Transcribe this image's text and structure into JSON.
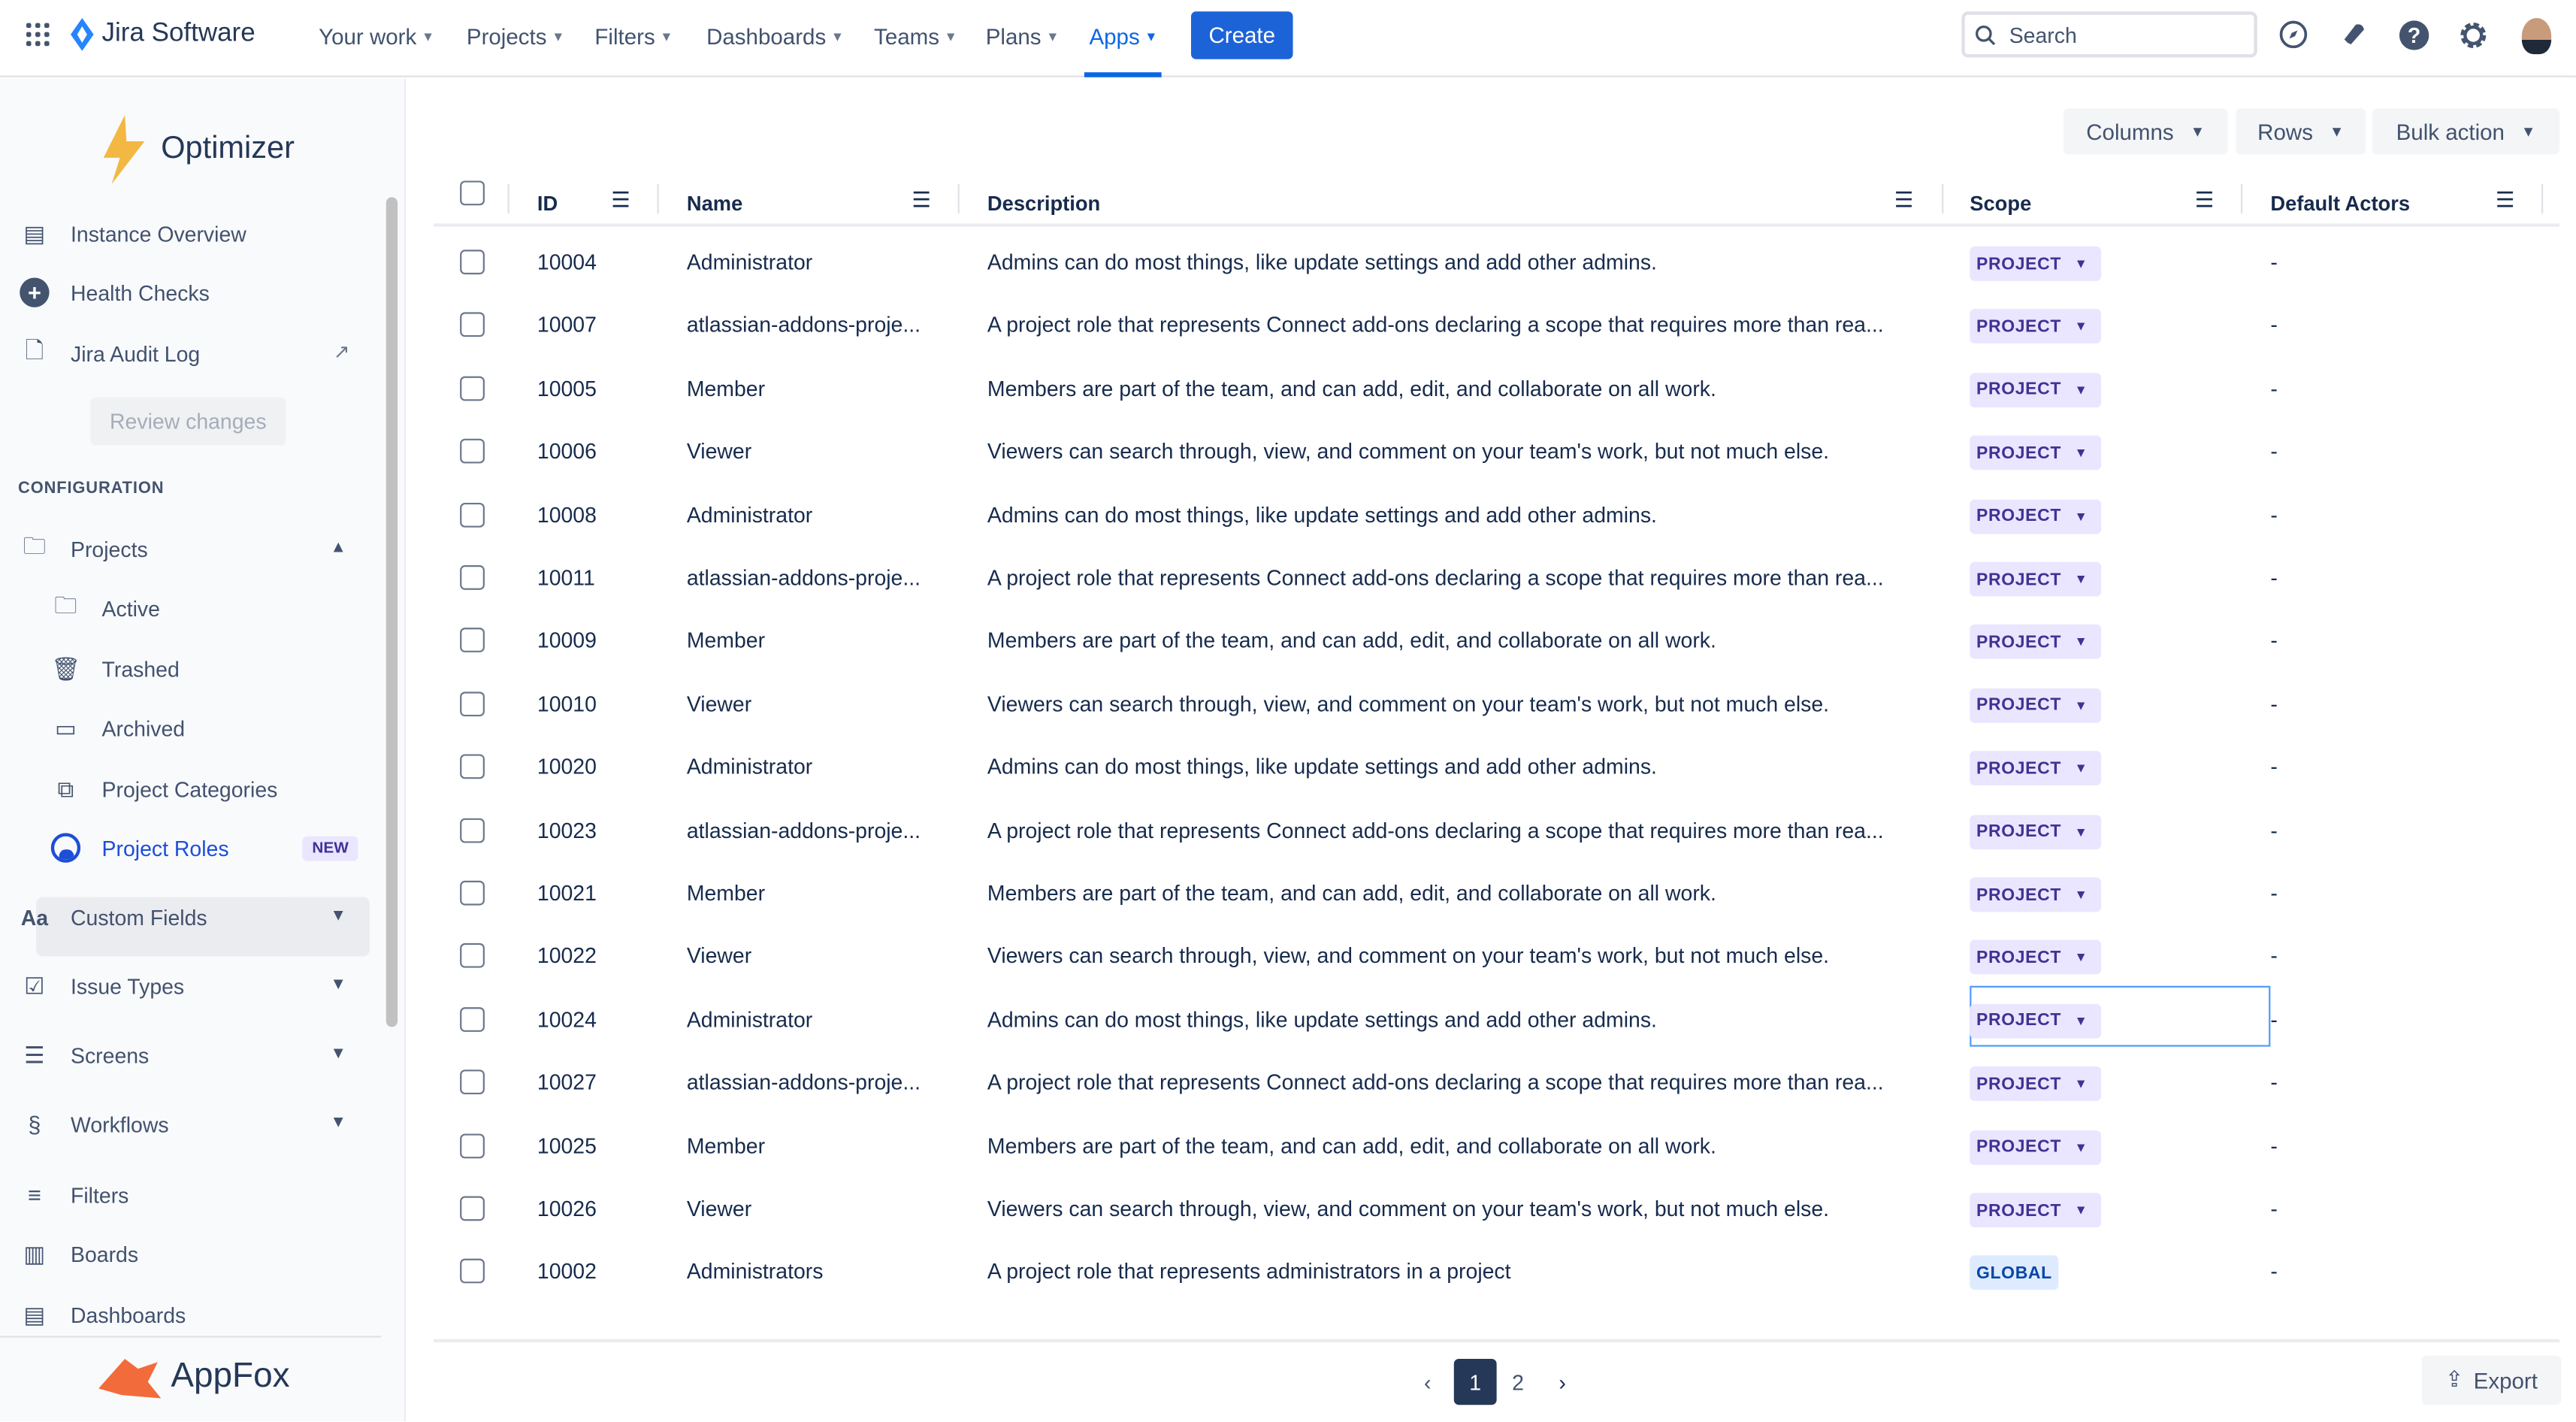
{
  "topnav": {
    "product": "Jira Software",
    "items": [
      "Your work",
      "Projects",
      "Filters",
      "Dashboards",
      "Teams",
      "Plans",
      "Apps"
    ],
    "active": "Apps",
    "create": "Create",
    "search_placeholder": "Search"
  },
  "sidebar": {
    "app_name": "Optimizer",
    "top_items": [
      "Instance Overview",
      "Health Checks",
      "Jira Audit Log"
    ],
    "review_changes": "Review changes",
    "section": "CONFIGURATION",
    "projects": "Projects",
    "project_children": [
      "Active",
      "Trashed",
      "Archived",
      "Project Categories",
      "Project Roles"
    ],
    "new_badge": "NEW",
    "groups": [
      "Custom Fields",
      "Issue Types",
      "Screens",
      "Workflows"
    ],
    "bottom_items": [
      "Filters",
      "Boards",
      "Dashboards"
    ],
    "vendor": "AppFox"
  },
  "toolbar": {
    "columns": "Columns",
    "rows": "Rows",
    "bulk": "Bulk action"
  },
  "table": {
    "headers": [
      "ID",
      "Name",
      "Description",
      "Scope",
      "Default Actors"
    ],
    "rows": [
      [
        "10004",
        "Administrator",
        "Admins can do most things, like update settings and add other admins.",
        "PROJECT",
        "-"
      ],
      [
        "10007",
        "atlassian-addons-proje...",
        "A project role that represents Connect add-ons declaring a scope that requires more than rea...",
        "PROJECT",
        "-"
      ],
      [
        "10005",
        "Member",
        "Members are part of the team, and can add, edit, and collaborate on all work.",
        "PROJECT",
        "-"
      ],
      [
        "10006",
        "Viewer",
        "Viewers can search through, view, and comment on your team's work, but not much else.",
        "PROJECT",
        "-"
      ],
      [
        "10008",
        "Administrator",
        "Admins can do most things, like update settings and add other admins.",
        "PROJECT",
        "-"
      ],
      [
        "10011",
        "atlassian-addons-proje...",
        "A project role that represents Connect add-ons declaring a scope that requires more than rea...",
        "PROJECT",
        "-"
      ],
      [
        "10009",
        "Member",
        "Members are part of the team, and can add, edit, and collaborate on all work.",
        "PROJECT",
        "-"
      ],
      [
        "10010",
        "Viewer",
        "Viewers can search through, view, and comment on your team's work, but not much else.",
        "PROJECT",
        "-"
      ],
      [
        "10020",
        "Administrator",
        "Admins can do most things, like update settings and add other admins.",
        "PROJECT",
        "-"
      ],
      [
        "10023",
        "atlassian-addons-proje...",
        "A project role that represents Connect add-ons declaring a scope that requires more than rea...",
        "PROJECT",
        "-"
      ],
      [
        "10021",
        "Member",
        "Members are part of the team, and can add, edit, and collaborate on all work.",
        "PROJECT",
        "-"
      ],
      [
        "10022",
        "Viewer",
        "Viewers can search through, view, and comment on your team's work, but not much else.",
        "PROJECT",
        "-"
      ],
      [
        "10024",
        "Administrator",
        "Admins can do most things, like update settings and add other admins.",
        "PROJECT",
        "-"
      ],
      [
        "10027",
        "atlassian-addons-proje...",
        "A project role that represents Connect add-ons declaring a scope that requires more than rea...",
        "PROJECT",
        "-"
      ],
      [
        "10025",
        "Member",
        "Members are part of the team, and can add, edit, and collaborate on all work.",
        "PROJECT",
        "-"
      ],
      [
        "10026",
        "Viewer",
        "Viewers can search through, view, and comment on your team's work, but not much else.",
        "PROJECT",
        "-"
      ],
      [
        "10002",
        "Administrators",
        "A project role that represents administrators in a project",
        "GLOBAL",
        "-"
      ]
    ]
  },
  "pagination": {
    "pages": [
      "1",
      "2"
    ],
    "current": "1"
  },
  "export": "Export",
  "colors": {
    "accent": "#0c66e4",
    "create": "#1d63d8",
    "project_badge": "#eae6ff",
    "global_badge": "#deebff"
  }
}
